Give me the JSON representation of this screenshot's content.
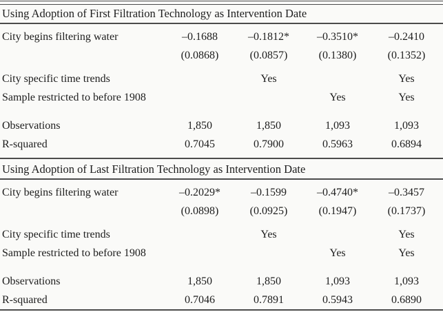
{
  "page": {
    "background": "#fafaf8",
    "text_color": "#1d1d1d",
    "rule_color": "#4b4b4b"
  },
  "chart_data": {
    "type": "table",
    "panels": [
      {
        "title": "Using Adoption of First Filtration Technology as Intervention Date",
        "rows": [
          {
            "label": "City begins filtering water",
            "values": [
              "–0.1688",
              "–0.1812*",
              "–0.3510*",
              "–0.2410"
            ]
          },
          {
            "label": "",
            "values": [
              "(0.0868)",
              "(0.0857)",
              "(0.1380)",
              "(0.1352)"
            ]
          },
          {
            "label": "City specific time trends",
            "values": [
              "",
              "Yes",
              "",
              "Yes"
            ]
          },
          {
            "label": "Sample restricted to before 1908",
            "values": [
              "",
              "",
              "Yes",
              "Yes"
            ]
          },
          {
            "label": "Observations",
            "values": [
              "1,850",
              "1,850",
              "1,093",
              "1,093"
            ]
          },
          {
            "label": "R-squared",
            "values": [
              "0.7045",
              "0.7900",
              "0.5963",
              "0.6894"
            ]
          }
        ]
      },
      {
        "title": "Using Adoption of Last Filtration Technology as Intervention Date",
        "rows": [
          {
            "label": "City begins filtering water",
            "values": [
              "–0.2029*",
              "–0.1599",
              "–0.4740*",
              "–0.3457"
            ]
          },
          {
            "label": "",
            "values": [
              "(0.0898)",
              "(0.0925)",
              "(0.1947)",
              "(0.1737)"
            ]
          },
          {
            "label": "City specific time trends",
            "values": [
              "",
              "Yes",
              "",
              "Yes"
            ]
          },
          {
            "label": "Sample restricted to before 1908",
            "values": [
              "",
              "",
              "Yes",
              "Yes"
            ]
          },
          {
            "label": "Observations",
            "values": [
              "1,850",
              "1,850",
              "1,093",
              "1,093"
            ]
          },
          {
            "label": "R-squared",
            "values": [
              "0.7046",
              "0.7891",
              "0.5943",
              "0.6890"
            ]
          }
        ]
      }
    ]
  }
}
